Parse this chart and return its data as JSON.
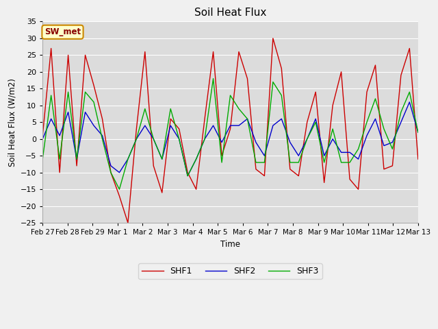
{
  "title": "Soil Heat Flux",
  "ylabel": "Soil Heat Flux (W/m2)",
  "xlabel": "Time",
  "ylim": [
    -25,
    35
  ],
  "yticks": [
    -25,
    -20,
    -15,
    -10,
    -5,
    0,
    5,
    10,
    15,
    20,
    25,
    30,
    35
  ],
  "xtick_labels": [
    "Feb 27",
    "Feb 28",
    "Feb 29",
    "Mar 1",
    "Mar 2",
    "Mar 3",
    "Mar 4",
    "Mar 5",
    "Mar 6",
    "Mar 7",
    "Mar 8",
    "Mar 9",
    "Mar 10",
    "Mar 11",
    "Mar 12",
    "Mar 13"
  ],
  "plot_bg": "#dcdcdc",
  "fig_bg": "#f0f0f0",
  "grid_color": "#ffffff",
  "legend_label": "SW_met",
  "legend_box_facecolor": "#ffffcc",
  "legend_box_edgecolor": "#cc8800",
  "line_colors": {
    "SHF1": "#cc0000",
    "SHF2": "#0000cc",
    "SHF3": "#00aa00"
  },
  "SHF1": [
    1,
    27,
    -10,
    25,
    -8,
    25,
    16,
    6,
    -10,
    -17,
    -25,
    3,
    26,
    -8,
    -16,
    6,
    3,
    -10,
    -15,
    6,
    26,
    -5,
    3,
    26,
    18,
    -9,
    -11,
    30,
    21,
    -9,
    -11,
    5,
    14,
    -13,
    10,
    20,
    -12,
    -15,
    14,
    22,
    -9,
    -8,
    19,
    27,
    -6
  ],
  "SHF2": [
    0,
    6,
    1,
    8,
    -6,
    8,
    4,
    1,
    -8,
    -10,
    -6,
    0,
    4,
    0,
    -6,
    4,
    0,
    -11,
    -6,
    0,
    4,
    -1,
    4,
    4,
    6,
    -1,
    -5,
    4,
    6,
    -1,
    -5,
    0,
    6,
    -5,
    0,
    -4,
    -4,
    -6,
    1,
    6,
    -2,
    -1,
    5,
    11,
    2
  ],
  "SHF3": [
    -6,
    13,
    -6,
    14,
    -6,
    14,
    11,
    0,
    -10,
    -15,
    -6,
    0,
    9,
    0,
    -6,
    9,
    0,
    -11,
    -6,
    0,
    18,
    -7,
    13,
    9,
    6,
    -7,
    -7,
    17,
    13,
    -7,
    -7,
    0,
    5,
    -7,
    3,
    -7,
    -7,
    -3,
    5,
    12,
    3,
    -3,
    8,
    14,
    2
  ]
}
